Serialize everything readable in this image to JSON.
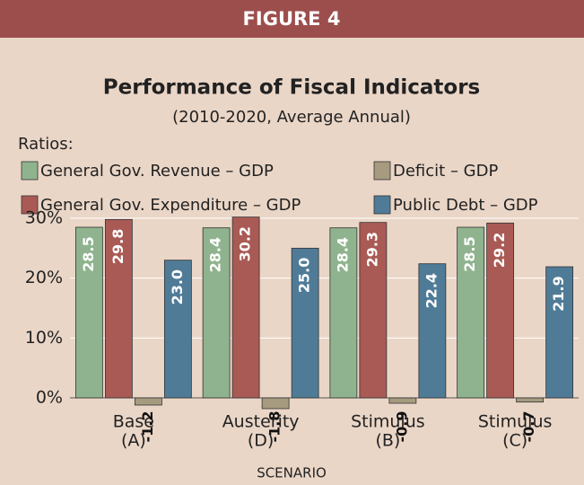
{
  "chart_data": {
    "type": "bar",
    "header": "FIGURE 4",
    "title": "Performance of Fiscal Indicators",
    "subtitle": "(2010-2020, Average Annual)",
    "legend_title": "Ratios:",
    "x_label": "SCENARIO",
    "categories": [
      [
        "Base",
        "(A)"
      ],
      [
        "Austerity",
        "(D)"
      ],
      [
        "Stimulus",
        "(B)"
      ],
      [
        "Stimulus",
        "(C)"
      ]
    ],
    "series": [
      {
        "name": "General Gov. Revenue – GDP",
        "color": "#8fb38e",
        "values": [
          28.5,
          28.4,
          28.4,
          28.5
        ],
        "value_labels": [
          "28.5",
          "28.4",
          "28.4",
          "28.5"
        ]
      },
      {
        "name": "General Gov. Expenditure – GDP",
        "color": "#a95a54",
        "values": [
          29.8,
          30.2,
          29.3,
          29.2
        ],
        "value_labels": [
          "29.8",
          "30.2",
          "29.3",
          "29.2"
        ]
      },
      {
        "name": "Deficit – GDP",
        "color": "#a69b7f",
        "values": [
          -1.2,
          -1.8,
          -0.9,
          -0.7
        ],
        "value_labels": [
          "-1.2",
          "-1.8",
          "-0.9",
          "-0.7"
        ]
      },
      {
        "name": "Public Debt – GDP",
        "color": "#4f7b97",
        "values": [
          23.0,
          25.0,
          22.4,
          21.9
        ],
        "value_labels": [
          "23.0",
          "25.0",
          "22.4",
          "21.9"
        ]
      }
    ],
    "ylim": [
      0,
      30
    ],
    "yticks": [
      {
        "value": 0,
        "label": "0%"
      },
      {
        "value": 10,
        "label": "10%"
      },
      {
        "value": 20,
        "label": "20%"
      },
      {
        "value": 30,
        "label": "30%"
      }
    ],
    "grid": true
  }
}
